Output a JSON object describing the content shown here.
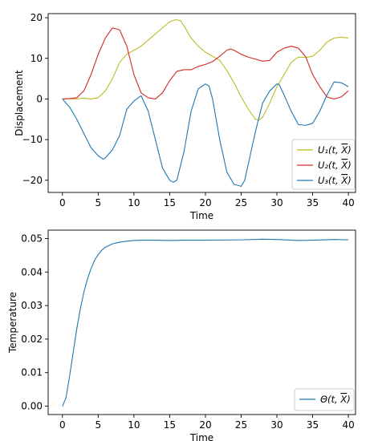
{
  "chart_data": [
    {
      "type": "line",
      "title": "",
      "xlabel": "Time",
      "ylabel": "Displacement",
      "xlim": [
        -2,
        41
      ],
      "ylim": [
        -23,
        21
      ],
      "xticks": [
        0,
        5,
        10,
        15,
        20,
        25,
        30,
        35,
        40
      ],
      "yticks": [
        -20,
        -10,
        0,
        10,
        20
      ],
      "grid": false,
      "legend_position": "bottom-right",
      "series": [
        {
          "name": "U₁(t, X̄)",
          "color": "#bcbd22",
          "x": [
            0,
            1,
            2,
            3,
            4,
            5,
            6,
            7,
            8,
            9,
            10,
            11,
            12,
            13,
            14,
            15,
            15.8,
            16.5,
            17,
            18,
            19,
            20,
            21,
            22,
            23,
            24,
            25,
            26,
            27,
            27.5,
            28,
            29,
            30,
            31,
            32,
            33,
            34,
            35,
            36,
            37,
            38,
            39,
            40
          ],
          "y": [
            0,
            0.1,
            0,
            0.2,
            0,
            0.3,
            2,
            5,
            9,
            11,
            12,
            13,
            14.5,
            16,
            17.5,
            19,
            19.5,
            19.3,
            18,
            15,
            13,
            11.5,
            10.5,
            9.5,
            7,
            4,
            0.5,
            -2.5,
            -5,
            -5.2,
            -4.5,
            -1,
            3,
            6,
            9,
            10.3,
            10.2,
            10.5,
            12,
            14,
            15,
            15.2,
            15
          ]
        },
        {
          "name": "U₂(t, X̄)",
          "color": "#d62728",
          "x": [
            0,
            1,
            2,
            3,
            4,
            5,
            6,
            7,
            8,
            9,
            10,
            11,
            12,
            13,
            14,
            15,
            16,
            17,
            18,
            19,
            20,
            21,
            22,
            23,
            23.5,
            24,
            25,
            26,
            27,
            28,
            29,
            30,
            31,
            32,
            33,
            34,
            35,
            36,
            37,
            38,
            39,
            40
          ],
          "y": [
            0,
            0.1,
            0.3,
            2,
            6,
            11,
            15,
            17.5,
            17,
            13,
            6,
            1.5,
            0.3,
            0,
            1.5,
            4.5,
            6.8,
            7.2,
            7.2,
            8,
            8.5,
            9.2,
            10.5,
            12,
            12.3,
            12,
            11,
            10.3,
            9.8,
            9.3,
            9.5,
            11.5,
            12.5,
            13,
            12.5,
            10.5,
            6,
            3,
            0.5,
            0,
            0.5,
            2
          ]
        },
        {
          "name": "U₃(t, X̄)",
          "color": "#1f77b4",
          "x": [
            0,
            1,
            2,
            3,
            4,
            5,
            5.7,
            6,
            7,
            8,
            9,
            10,
            11,
            12,
            13,
            14,
            15,
            15.5,
            16,
            17,
            18,
            19,
            20,
            20.5,
            21,
            22,
            23,
            24,
            25,
            25.5,
            26,
            27,
            28,
            29,
            30,
            30.3,
            31,
            32,
            33,
            34,
            35,
            36,
            37,
            38,
            39,
            40
          ],
          "y": [
            0,
            -2,
            -5,
            -8.5,
            -12,
            -14,
            -14.8,
            -14.5,
            -12.5,
            -9,
            -2.5,
            -0.5,
            0.8,
            -3,
            -10,
            -17,
            -20,
            -20.5,
            -20,
            -13,
            -3,
            2.5,
            3.7,
            3.2,
            0,
            -10,
            -18,
            -21,
            -21.5,
            -20,
            -16,
            -8,
            -1,
            2,
            3.7,
            3.6,
            1,
            -3,
            -6.3,
            -6.5,
            -6,
            -3,
            1,
            4.2,
            4,
            3
          ]
        }
      ]
    },
    {
      "type": "line",
      "title": "",
      "xlabel": "Time",
      "ylabel": "Temperature",
      "xlim": [
        -2,
        41
      ],
      "ylim": [
        -0.0025,
        0.0525
      ],
      "xticks": [
        0,
        5,
        10,
        15,
        20,
        25,
        30,
        35,
        40
      ],
      "yticks": [
        0.0,
        0.01,
        0.02,
        0.03,
        0.04,
        0.05
      ],
      "ytick_labels": [
        "0.00",
        "0.01",
        "0.02",
        "0.03",
        "0.04",
        "0.05"
      ],
      "grid": false,
      "legend_position": "bottom-right",
      "series": [
        {
          "name": "Θ(t, X̄)",
          "color": "#1f77b4",
          "x": [
            0,
            0.5,
            1,
            1.5,
            2,
            2.5,
            3,
            3.5,
            4,
            4.5,
            5,
            5.5,
            6,
            7,
            8,
            9,
            10,
            11,
            12,
            13,
            15,
            17,
            20,
            25,
            28,
            30,
            33,
            35,
            38,
            40
          ],
          "y": [
            0,
            0.0025,
            0.009,
            0.016,
            0.023,
            0.029,
            0.034,
            0.038,
            0.041,
            0.0435,
            0.0452,
            0.0465,
            0.0474,
            0.0484,
            0.0489,
            0.0492,
            0.0494,
            0.0495,
            0.0495,
            0.0495,
            0.0494,
            0.0495,
            0.0495,
            0.0496,
            0.0498,
            0.0497,
            0.0494,
            0.0495,
            0.0497,
            0.0496
          ]
        }
      ]
    }
  ]
}
